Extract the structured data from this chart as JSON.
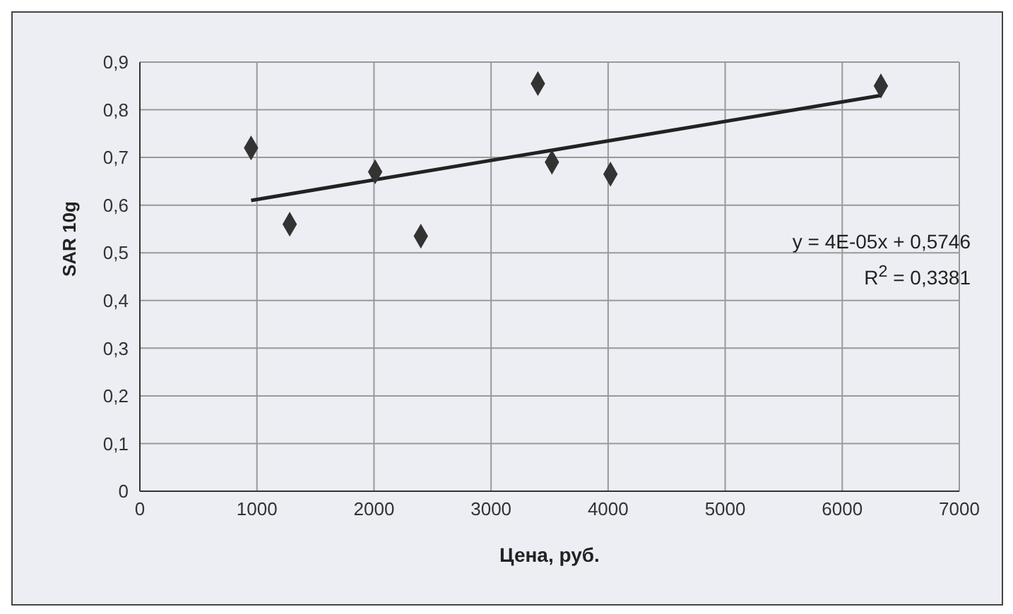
{
  "chart_data": {
    "type": "scatter",
    "xlabel": "Цена, руб.",
    "ylabel": "SAR 10g",
    "xlim": [
      0,
      7000
    ],
    "xticks": [
      0,
      1000,
      2000,
      3000,
      4000,
      5000,
      6000,
      7000
    ],
    "ylim": [
      0,
      0.9
    ],
    "yticks": [
      0,
      {
        "value": 0.1,
        "label": "0,1"
      },
      {
        "value": 0.2,
        "label": "0,2"
      },
      {
        "value": 0.3,
        "label": "0,3"
      },
      {
        "value": 0.4,
        "label": "0,4"
      },
      {
        "value": 0.5,
        "label": "0,5"
      },
      {
        "value": 0.6,
        "label": "0,6"
      },
      {
        "value": 0.7,
        "label": "0,7"
      },
      {
        "value": 0.8,
        "label": "0,8"
      },
      {
        "value": 0.9,
        "label": "0,9"
      }
    ],
    "grid": true,
    "legend": false,
    "series": [
      {
        "marker": "diamond",
        "color": "#333333",
        "x": [
          950,
          1280,
          2010,
          2400,
          3400,
          3520,
          4020,
          6330
        ],
        "values": [
          0.72,
          0.56,
          0.67,
          0.535,
          0.855,
          0.69,
          0.665,
          0.85
        ]
      },
      {
        "type": "line",
        "color": "#222222",
        "x": [
          950,
          6330
        ],
        "values": [
          0.61,
          0.83
        ],
        "line_style": "solid",
        "marker": "none"
      }
    ],
    "annotations": [
      "y = 4E-05x + 0,5746",
      "R$^{2}$ = 0,3381"
    ]
  }
}
